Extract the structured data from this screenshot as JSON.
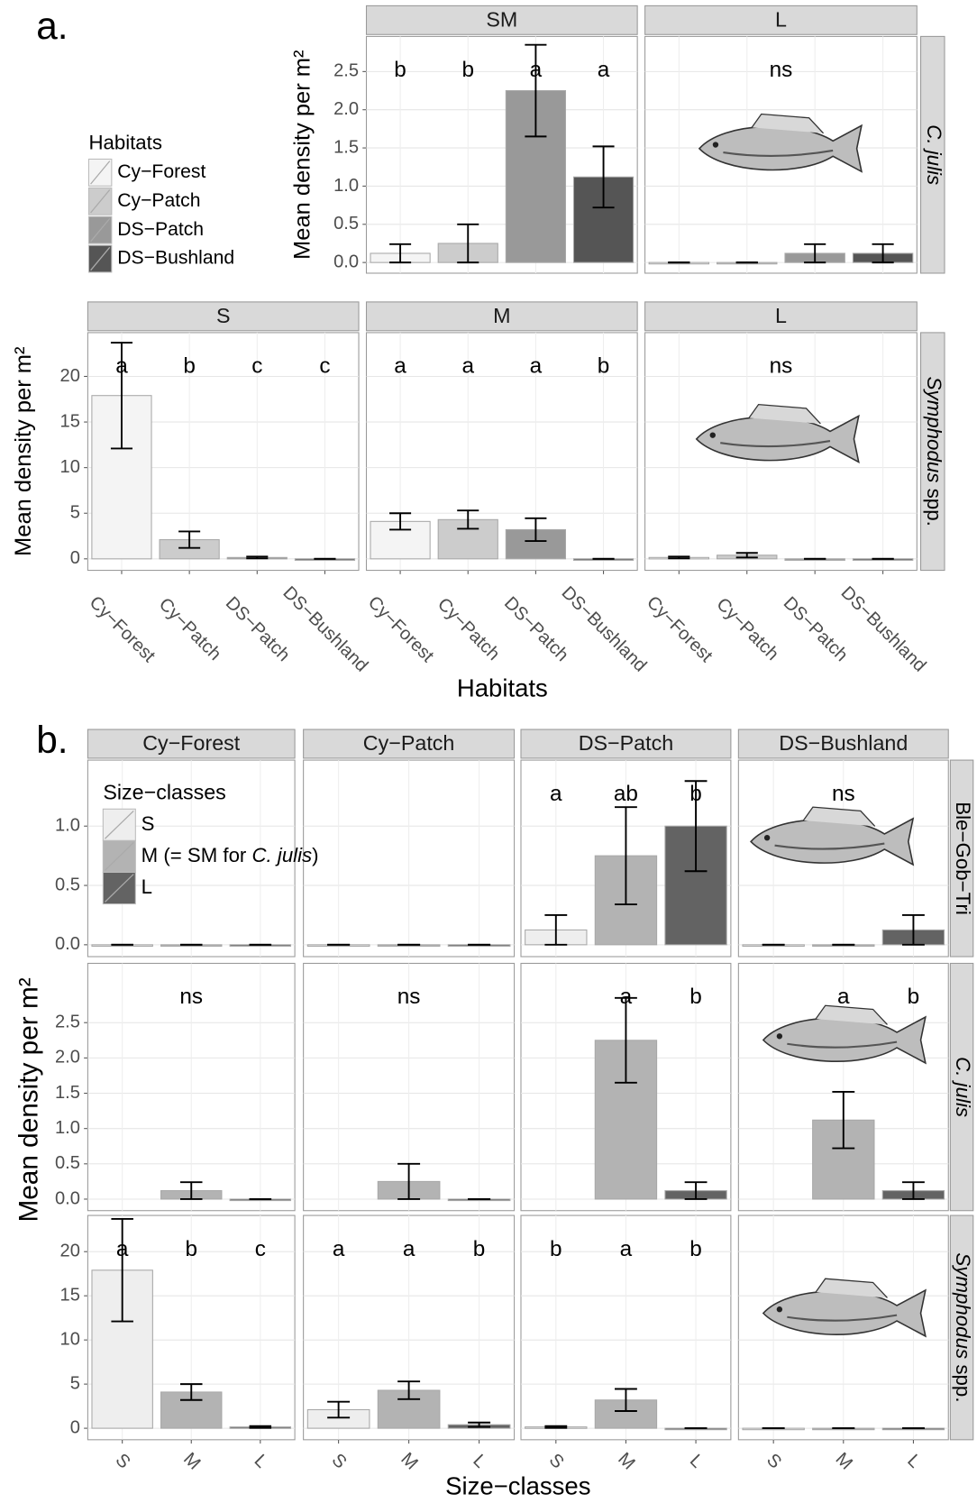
{
  "chart_data": [
    {
      "type": "bar",
      "label": "a.",
      "ylabel": "Mean density per m²",
      "xlabel": "Habitats",
      "grid": true,
      "categories": [
        "Cy−Forest",
        "Cy−Patch",
        "DS−Patch",
        "DS−Bushland"
      ],
      "colors": [
        "#f4f4f4",
        "#cccccc",
        "#999999",
        "#555555"
      ],
      "legend": {
        "title": "Habitats"
      },
      "rows": [
        {
          "label": [
            "C. julis"
          ],
          "italic": [
            true
          ],
          "ylim": [
            -0.14,
            2.96
          ],
          "yticks": [
            {
              "value": 0,
              "label": "0.0"
            },
            0.5,
            {
              "value": 1,
              "label": "1.0"
            },
            1.5,
            {
              "value": 2,
              "label": "2.0"
            },
            2.5
          ],
          "facets": [
            {
              "title": "SM",
              "values": [
                0.12,
                0.25,
                2.25,
                1.12
              ],
              "errors": [
                0.12,
                0.25,
                0.6,
                0.4
              ],
              "letters": [
                "b",
                "b",
                "a",
                "a"
              ]
            },
            {
              "title": "L",
              "values": [
                0,
                0,
                0.12,
                0.12
              ],
              "errors": [
                0,
                0,
                0.12,
                0.12
              ],
              "annotation": "ns"
            }
          ]
        },
        {
          "label": [
            "Symphodus",
            " spp."
          ],
          "italic": [
            true,
            false
          ],
          "ylim": [
            -1.26,
            24.8
          ],
          "yticks": [
            0,
            5,
            10,
            15,
            20
          ],
          "facets": [
            {
              "title": "S",
              "values": [
                17.9,
                2.1,
                0.15,
                0
              ],
              "errors": [
                5.8,
                0.9,
                0.1,
                0
              ],
              "letters": [
                "a",
                "b",
                "c",
                "c"
              ]
            },
            {
              "title": "M",
              "values": [
                4.1,
                4.3,
                3.2,
                0
              ],
              "errors": [
                0.9,
                1.0,
                1.25,
                0
              ],
              "letters": [
                "a",
                "a",
                "a",
                "b"
              ]
            },
            {
              "title": "L",
              "values": [
                0.15,
                0.4,
                0,
                0
              ],
              "errors": [
                0.1,
                0.25,
                0,
                0
              ],
              "annotation": "ns"
            }
          ]
        }
      ]
    },
    {
      "type": "bar",
      "label": "b.",
      "ylabel": "Mean density per m²",
      "xlabel": "Size−classes",
      "grid": true,
      "categories": [
        "S",
        "M",
        "L"
      ],
      "colors": [
        "#eeeeee",
        "#b3b3b3",
        "#636363"
      ],
      "columns": [
        "Cy−Forest",
        "Cy−Patch",
        "DS−Patch",
        "DS−Bushland"
      ],
      "legend": {
        "title": "Size−classes",
        "entries": [
          [
            "S"
          ],
          [
            "M (= SM for ",
            "C. julis",
            ")"
          ],
          [
            "L"
          ]
        ],
        "italic": [
          [
            false
          ],
          [
            false,
            true,
            false
          ],
          [
            false
          ]
        ]
      },
      "rows": [
        {
          "label": [
            "Ble−Gob−Tri"
          ],
          "italic": [
            false
          ],
          "ylim": [
            -0.1,
            1.556
          ],
          "yticks": [
            {
              "value": 0,
              "label": "0.0"
            },
            0.5,
            {
              "value": 1,
              "label": "1.0"
            }
          ],
          "facets": [
            {
              "values": [
                0,
                0,
                0
              ],
              "errors": [
                0,
                0,
                0
              ]
            },
            {
              "values": [
                0,
                0,
                0
              ],
              "errors": [
                0,
                0,
                0
              ]
            },
            {
              "values": [
                0.125,
                0.75,
                1.0
              ],
              "errors": [
                0.125,
                0.41,
                0.38
              ],
              "letters": [
                "a",
                "ab",
                "b"
              ]
            },
            {
              "values": [
                0,
                0,
                0.125
              ],
              "errors": [
                0,
                0,
                0.125
              ],
              "annotation": "ns"
            }
          ]
        },
        {
          "label": [
            "C. julis"
          ],
          "italic": [
            true
          ],
          "ylim": [
            -0.163,
            3.34
          ],
          "yticks": [
            {
              "value": 0,
              "label": "0.0"
            },
            0.5,
            {
              "value": 1,
              "label": "1.0"
            },
            1.5,
            {
              "value": 2,
              "label": "2.0"
            },
            2.5
          ],
          "facets": [
            {
              "values": [
                null,
                0.12,
                0
              ],
              "errors": [
                null,
                0.12,
                0
              ],
              "annotation": "ns"
            },
            {
              "values": [
                null,
                0.25,
                0
              ],
              "errors": [
                null,
                0.25,
                0
              ],
              "annotation": "ns"
            },
            {
              "values": [
                null,
                2.25,
                0.12
              ],
              "errors": [
                null,
                0.6,
                0.12
              ],
              "letters": [
                null,
                "a",
                "b"
              ]
            },
            {
              "values": [
                null,
                1.12,
                0.12
              ],
              "errors": [
                null,
                0.4,
                0.12
              ],
              "letters": [
                null,
                "a",
                "b"
              ]
            }
          ]
        },
        {
          "label": [
            "Symphodus",
            " spp."
          ],
          "italic": [
            true,
            false
          ],
          "ylim": [
            -1.3,
            24.1
          ],
          "yticks": [
            0,
            5,
            10,
            15,
            20
          ],
          "facets": [
            {
              "values": [
                17.9,
                4.1,
                0.15
              ],
              "errors": [
                5.8,
                0.9,
                0.1
              ],
              "letters": [
                "a",
                "b",
                "c"
              ]
            },
            {
              "values": [
                2.1,
                4.3,
                0.4
              ],
              "errors": [
                0.9,
                1.0,
                0.25
              ],
              "letters": [
                "a",
                "a",
                "b"
              ]
            },
            {
              "values": [
                0.15,
                3.2,
                0
              ],
              "errors": [
                0.1,
                1.25,
                0
              ],
              "letters": [
                "b",
                "a",
                "b"
              ]
            },
            {
              "values": [
                0,
                0,
                0
              ],
              "errors": [
                0,
                0,
                0
              ]
            }
          ]
        }
      ]
    }
  ]
}
